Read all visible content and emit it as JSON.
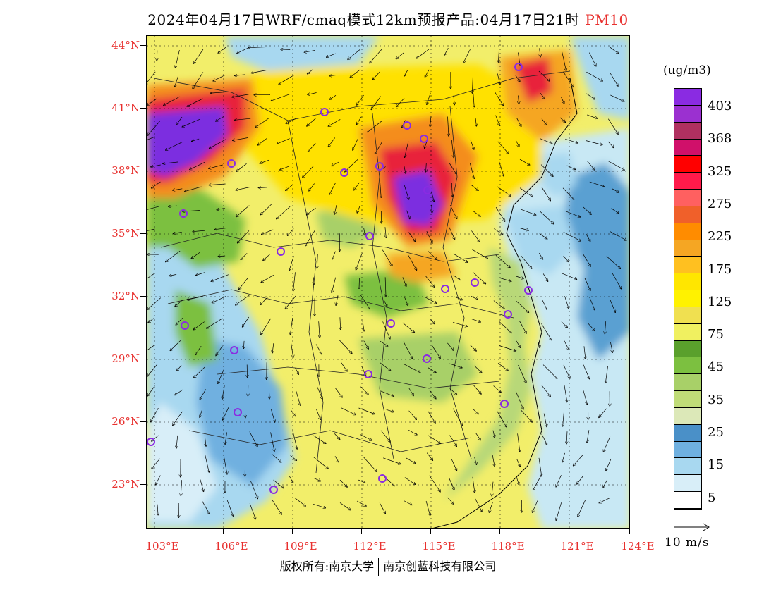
{
  "title": {
    "prefix": "2024年04月17日WRF/cmaq模式12km预报产品:04月17日21时",
    "pollutant": "PM10"
  },
  "map": {
    "lat_labels": [
      "44°N",
      "41°N",
      "38°N",
      "35°N",
      "32°N",
      "29°N",
      "26°N",
      "23°N"
    ],
    "lon_labels": [
      "103°E",
      "106°E",
      "109°E",
      "112°E",
      "115°E",
      "118°E",
      "121°E",
      "124°E"
    ],
    "background_color": "#f2ee6a",
    "region_colors": {
      "ocean": "#c8e8f4",
      "ocean_deep": "#5aa0d2",
      "green": "#7bbf45",
      "yellow": "#ffe100",
      "orange": "#f48d1e",
      "red": "#e8203a",
      "purple": "#7b2fe0"
    }
  },
  "legend": {
    "unit": "(ug/m3)",
    "colors": [
      "#8a2be2",
      "#9b30d0",
      "#b03060",
      "#d0106a",
      "#ff0000",
      "#ff1a4a",
      "#ff6060",
      "#f0602a",
      "#ff8c00",
      "#f5a623",
      "#ffc020",
      "#ffe600",
      "#fff200",
      "#f0e050",
      "#f0f060",
      "#5aa02c",
      "#7cc040",
      "#a8d068",
      "#c0dc78",
      "#dce8b8",
      "#4a90c8",
      "#6fb0e0",
      "#a8d8f0",
      "#d8eef8",
      "#ffffff"
    ],
    "labels": [
      "403",
      "368",
      "325",
      "275",
      "225",
      "175",
      "125",
      "75",
      "45",
      "35",
      "25",
      "15",
      "5"
    ]
  },
  "wind_ref": {
    "label": "10 m/s"
  },
  "footer": {
    "left": "版权所有:南京大学",
    "right": "南京创蓝科技有限公司"
  }
}
